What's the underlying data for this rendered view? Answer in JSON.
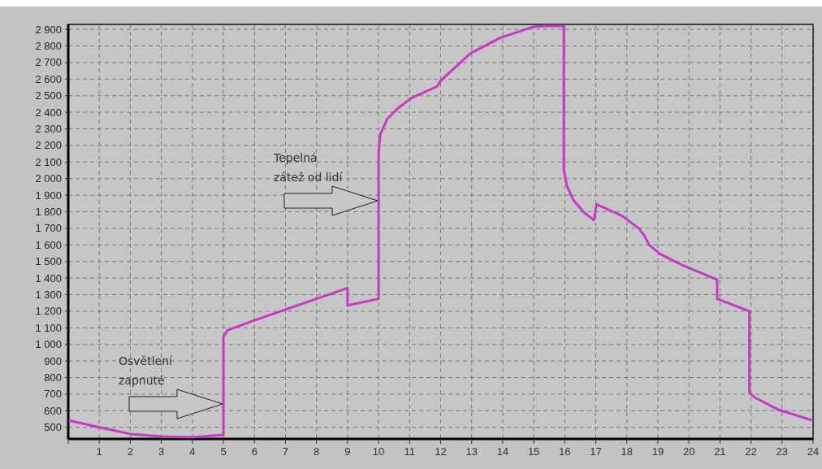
{
  "chart_data": {
    "type": "line",
    "x": [
      0.05,
      1,
      2,
      3,
      4,
      5,
      5,
      5.13,
      6,
      7,
      8,
      9,
      9,
      10,
      10,
      10.05,
      10.28,
      10.63,
      11.05,
      11.88,
      12,
      12.96,
      13.93,
      14.97,
      15.4,
      15.97,
      15.97,
      16.07,
      16.28,
      16.62,
      16.94,
      17.02,
      17.85,
      18.38,
      18.55,
      18.72,
      19.08,
      19.77,
      20.91,
      20.91,
      21.95,
      21.95,
      22.12,
      22.9,
      23.92
    ],
    "series": [
      {
        "color": "#c837c8",
        "values": [
          540,
          500,
          460,
          445,
          440,
          455,
          1045,
          1085,
          1145,
          1210,
          1275,
          1340,
          1235,
          1275,
          2150,
          2265,
          2360,
          2425,
          2485,
          2555,
          2590,
          2755,
          2850,
          2915,
          2920,
          2920,
          2050,
          1955,
          1870,
          1795,
          1750,
          1845,
          1775,
          1700,
          1660,
          1600,
          1545,
          1480,
          1390,
          1275,
          1200,
          710,
          680,
          605,
          545
        ]
      }
    ],
    "xlim": [
      0,
      24
    ],
    "xticks": [
      {
        "value": 0,
        "label": null
      },
      1,
      2,
      3,
      4,
      5,
      6,
      7,
      8,
      9,
      10,
      11,
      12,
      13,
      14,
      15,
      16,
      17,
      18,
      19,
      20,
      21,
      22,
      23,
      24
    ],
    "ylim": [
      430,
      2930
    ],
    "yticks": [
      500,
      600,
      700,
      800,
      900,
      {
        "value": 1000,
        "label": "1 000"
      },
      {
        "value": 1100,
        "label": "1 100"
      },
      {
        "value": 1200,
        "label": "1 200"
      },
      {
        "value": 1300,
        "label": "1 300"
      },
      {
        "value": 1400,
        "label": "1 400"
      },
      {
        "value": 1500,
        "label": "1 500"
      },
      {
        "value": 1600,
        "label": "1 600"
      },
      {
        "value": 1700,
        "label": "1 700"
      },
      {
        "value": 1800,
        "label": "1 800"
      },
      {
        "value": 1900,
        "label": "1 900"
      },
      {
        "value": 2000,
        "label": "2 000"
      },
      {
        "value": 2100,
        "label": "2 100"
      },
      {
        "value": 2200,
        "label": "2 200"
      },
      {
        "value": 2300,
        "label": "2 300"
      },
      {
        "value": 2400,
        "label": "2 400"
      },
      {
        "value": 2500,
        "label": "2 500"
      },
      {
        "value": 2600,
        "label": "2 600"
      },
      {
        "value": 2700,
        "label": "2 700"
      },
      {
        "value": 2800,
        "label": "2 800"
      },
      {
        "value": 2900,
        "label": "2 900"
      }
    ],
    "grid": true,
    "line_style": "solid",
    "marker": "none",
    "annotations": [
      "Osvětlení\nzapnuté",
      "Tepelná\nzátež od lidí"
    ]
  }
}
